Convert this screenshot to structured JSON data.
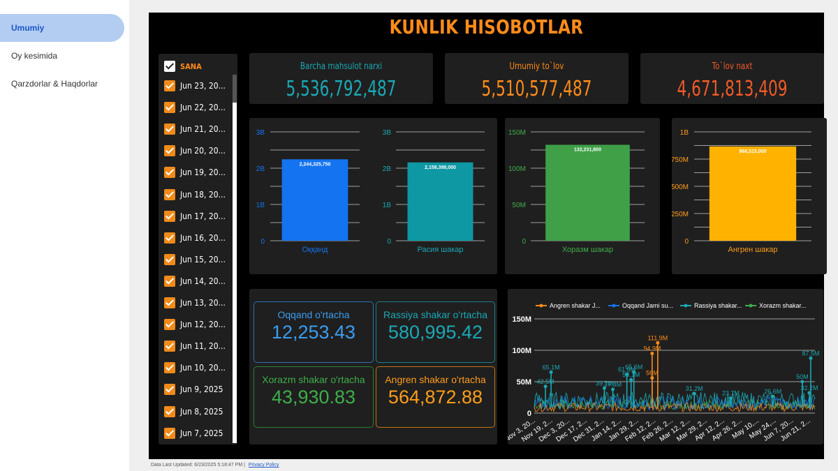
{
  "nav": {
    "items": [
      {
        "label": "Umumiy",
        "active": true
      },
      {
        "label": "Oy kesimida",
        "active": false
      },
      {
        "label": "Qarzdorlar & Haqdorlar",
        "active": false
      }
    ]
  },
  "title": "KUNLIK HISOBOTLAR",
  "dates": {
    "header": "SANA",
    "items": [
      "Jun 23, 20...",
      "Jun 22, 20...",
      "Jun 21, 20...",
      "Jun 20, 20...",
      "Jun 19, 20...",
      "Jun 18, 20...",
      "Jun 17, 20...",
      "Jun 16, 20...",
      "Jun 15, 20...",
      "Jun 14, 20...",
      "Jun 13, 20...",
      "Jun 12, 20...",
      "Jun 11, 20...",
      "Jun 10, 20...",
      "Jun 9, 2025",
      "Jun 8, 2025",
      "Jun 7, 2025"
    ]
  },
  "kpis": [
    {
      "label": "Barcha mahsulot narxi",
      "value": "5,536,792,487",
      "label_color": "#1ba8b4",
      "value_color": "#1ba8b4"
    },
    {
      "label": "Umumiy to`lov",
      "value": "5,510,577,487",
      "label_color": "#ff8c1a",
      "value_color": "#ff8c1a"
    },
    {
      "label": "To`lov naxt",
      "value": "4,671,813,409",
      "label_color": "#f05a28",
      "value_color": "#f05a28"
    }
  ],
  "averages": [
    {
      "label": "Oqqand o'rtacha",
      "value": "12,253.43",
      "color": "#3b9df0",
      "border": "#2f6fb5"
    },
    {
      "label": "Rassiya shakar o'rtacha",
      "value": "580,995.42",
      "color": "#1ba8b4",
      "border": "#1b7f88"
    },
    {
      "label": "Xorazm shakar o'rtacha",
      "value": "43,930.83",
      "color": "#3fae4a",
      "border": "#2e7e37"
    },
    {
      "label": "Angren shakar o'rtacha",
      "value": "564,872.88",
      "color": "#ff9d1a",
      "border": "#c27411"
    }
  ],
  "chart_data": [
    {
      "type": "bar",
      "categories": [
        "Оққанд"
      ],
      "values": [
        2244325750
      ],
      "data_labels": [
        "2,244,325,750"
      ],
      "ylim": [
        0,
        3000000000
      ],
      "ticks": [
        0,
        1000000000,
        2000000000,
        3000000000
      ],
      "tick_labels": [
        "0",
        "1B",
        "2B",
        "3B"
      ],
      "color": "#1473f0",
      "axis_color": "#1473f0"
    },
    {
      "type": "bar",
      "categories": [
        "Расия шакар"
      ],
      "values": [
        2158398000
      ],
      "data_labels": [
        "2,158,398,000"
      ],
      "ylim": [
        0,
        3000000000
      ],
      "ticks": [
        0,
        1000000000,
        2000000000,
        3000000000
      ],
      "tick_labels": [
        "0",
        "1B",
        "2B",
        "3B"
      ],
      "color": "#0e98a4",
      "axis_color": "#1ba8b4"
    },
    {
      "type": "bar",
      "categories": [
        "Хоразм шакар"
      ],
      "values": [
        132231800
      ],
      "data_labels": [
        "132,231,800"
      ],
      "ylim": [
        0,
        150000000
      ],
      "ticks": [
        0,
        50000000,
        100000000,
        150000000
      ],
      "tick_labels": [
        "0",
        "50M",
        "100M",
        "150M"
      ],
      "color": "#3fa047",
      "axis_color": "#3fae4a"
    },
    {
      "type": "bar",
      "categories": [
        "Ангрен шакар"
      ],
      "values": [
        866515000
      ],
      "data_labels": [
        "866,515,000"
      ],
      "ylim": [
        0,
        1000000000
      ],
      "ticks": [
        0,
        250000000,
        500000000,
        750000000,
        1000000000
      ],
      "tick_labels": [
        "0",
        "250M",
        "500M",
        "750M",
        "1B"
      ],
      "color": "#ffb300",
      "axis_color": "#ff9d1a"
    },
    {
      "type": "line",
      "legend": [
        "Angren shakar J...",
        "Oqqand Jami su...",
        "Rassiya shakar...",
        "Xorazm shakar..."
      ],
      "legend_placement": "top",
      "series_colors": [
        "#ff8c1a",
        "#1473f0",
        "#1ba8b4",
        "#3fae4a"
      ],
      "x_tick_labels": [
        "Nov 3, 20...",
        "Nov 19, 2...",
        "Dec 3, 20...",
        "Dec 17, 2...",
        "Dec 31, 2...",
        "Jan 14, 2...",
        "Jan 29, 2...",
        "Feb 12, 2...",
        "Feb 26, 2...",
        "Mar 12, 2...",
        "Mar 29, 2...",
        "Apr 12, 2...",
        "Apr 26, 2...",
        "May 10,...",
        "May 24,...",
        "Jun 7, 20...",
        "Jun 21, 2..."
      ],
      "ylim": [
        0,
        150000000
      ],
      "ticks": [
        0,
        50000000,
        100000000,
        150000000
      ],
      "tick_labels": [
        "0",
        "50M",
        "100M",
        "150M"
      ],
      "annotations": [
        {
          "text": "111.9M",
          "series": 0,
          "x": 0.44,
          "y": 111900000
        },
        {
          "text": "94.9M",
          "series": 0,
          "x": 0.42,
          "y": 94900000
        },
        {
          "text": "87.5M",
          "series": 2,
          "x": 0.985,
          "y": 87500000
        },
        {
          "text": "65.1M",
          "series": 2,
          "x": 0.06,
          "y": 65100000
        },
        {
          "text": "65.6M",
          "series": 2,
          "x": 0.355,
          "y": 65600000
        },
        {
          "text": "61.6M",
          "series": 2,
          "x": 0.33,
          "y": 61600000
        },
        {
          "text": "53.1M",
          "series": 2,
          "x": 0.345,
          "y": 53100000
        },
        {
          "text": "56M",
          "series": 0,
          "x": 0.42,
          "y": 56000000
        },
        {
          "text": "50M",
          "series": 2,
          "x": 0.955,
          "y": 50000000
        },
        {
          "text": "42.5M",
          "series": 2,
          "x": 0.04,
          "y": 42500000
        },
        {
          "text": "39.7M",
          "series": 2,
          "x": 0.25,
          "y": 39700000
        },
        {
          "text": "37.8M",
          "series": 2,
          "x": 0.28,
          "y": 37800000
        },
        {
          "text": "32.2M",
          "series": 2,
          "x": 0.98,
          "y": 32200000
        },
        {
          "text": "31.2M",
          "series": 2,
          "x": 0.57,
          "y": 31200000
        },
        {
          "text": "26.6M",
          "series": 2,
          "x": 0.85,
          "y": 26600000
        },
        {
          "text": "23.7M",
          "series": 2,
          "x": 0.7,
          "y": 23700000
        }
      ]
    }
  ],
  "footer": {
    "updated": "Data Last Updated: 6/23/2025 5:18:47 PM",
    "separator": "|",
    "privacy": "Privacy Policy"
  }
}
